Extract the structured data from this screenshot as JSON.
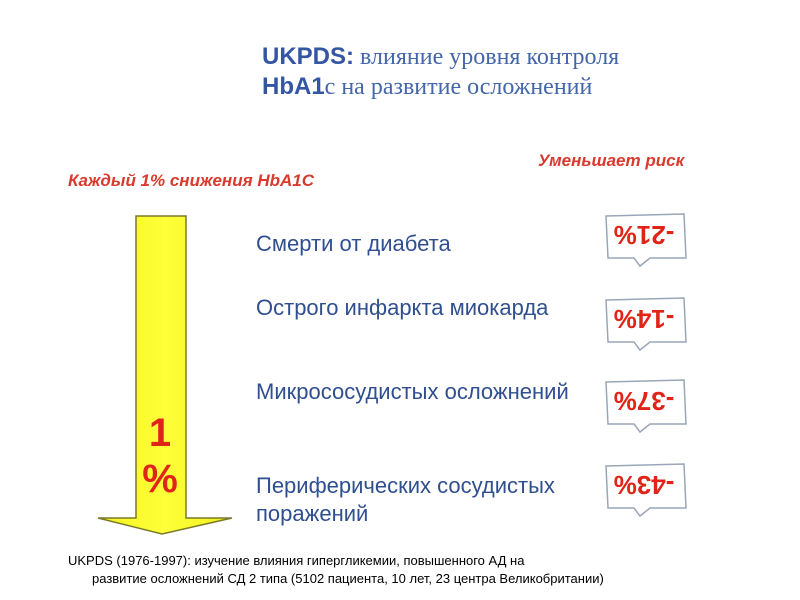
{
  "title": {
    "line1_bold": "UKPDS:",
    "line1_rest": " влияние уровня контроля",
    "line2_bold": "HbA1",
    "line2_rest": "c на развитие осложнений"
  },
  "left_caption": "Каждый 1% снижения HbA1C",
  "right_caption": "Уменьшает риск",
  "arrow": {
    "label_line1": "1",
    "label_line2": "%",
    "fill_color": "#ffff33",
    "outline_color": "#7a7a2a"
  },
  "items": [
    {
      "label": "Смерти от диабета",
      "value": "-21%"
    },
    {
      "label": "Острого инфаркта миокарда",
      "value": "-14%"
    },
    {
      "label": "Микрососудистых осложнений",
      "value": "-37%"
    },
    {
      "label": "Периферических сосудистых поражений",
      "value": "-43%"
    }
  ],
  "footnote": {
    "line1": "UKPDS (1976-1997): изучение влияния гипергликемии, повышенного АД на",
    "line2": "развитие осложнений СД 2 типа  (5102 пациента,  10 лет, 23 центра Великобритании)"
  },
  "colors": {
    "title": "#3355a3",
    "caption": "#d83a2e",
    "item_text": "#2f4f8f",
    "badge_text": "#e02418"
  }
}
